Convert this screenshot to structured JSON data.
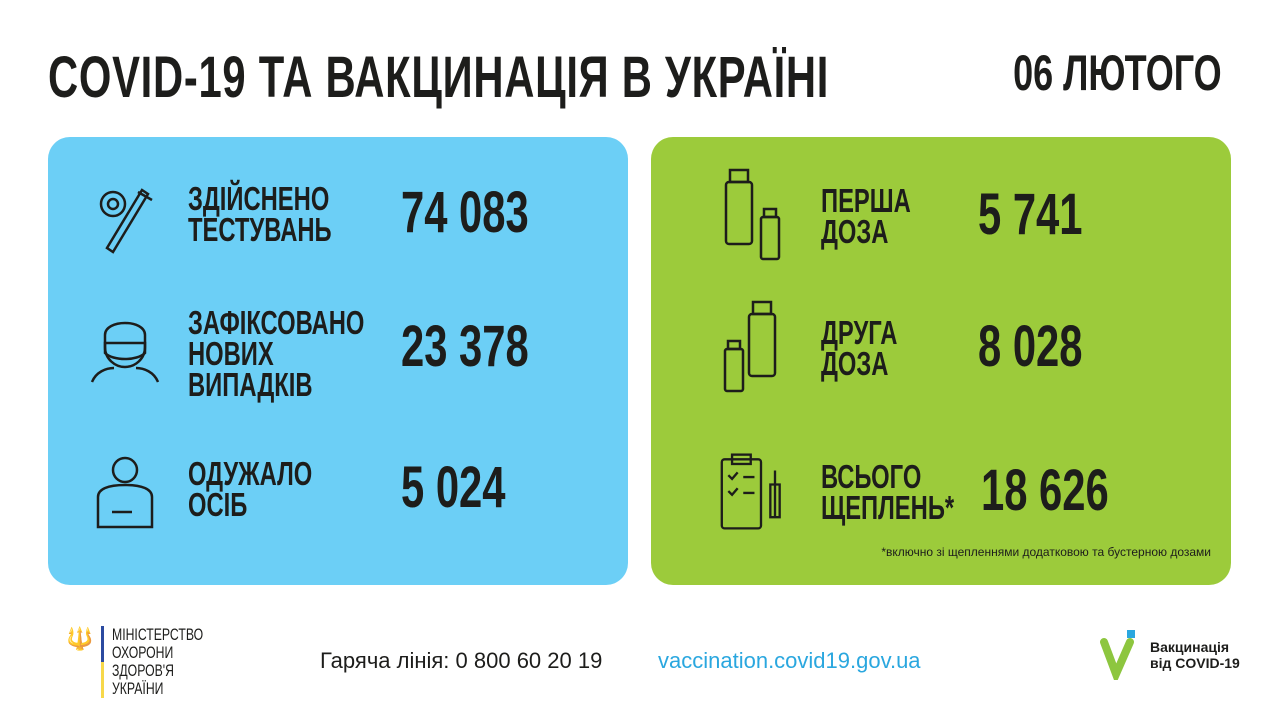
{
  "header": {
    "title": "COVID-19 ТА ВАКЦИНАЦІЯ В УКРАЇНІ",
    "date": "06 ЛЮТОГО"
  },
  "covid": [
    {
      "label1": "ЗДІЙСНЕНО",
      "label2": "ТЕСТУВАНЬ",
      "label3": "",
      "value": "74 083",
      "icon": "test-tube-icon"
    },
    {
      "label1": "ЗАФІКСОВАНО",
      "label2": "НОВИХ",
      "label3": "ВИПАДКІВ",
      "value": "23 378",
      "icon": "masked-person-icon"
    },
    {
      "label1": "ОДУЖАЛО",
      "label2": "ОСІБ",
      "label3": "",
      "value": "5 024",
      "icon": "recovered-person-icon"
    }
  ],
  "vaccination": [
    {
      "label1": "ПЕРША",
      "label2": "ДОЗА",
      "value": "5 741",
      "icon": "vaccine-vials-icon"
    },
    {
      "label1": "ДРУГА",
      "label2": "ДОЗА",
      "value": "8 028",
      "icon": "vaccine-vials-icon"
    },
    {
      "label1": "ВСЬОГО",
      "label2": "ЩЕПЛЕНЬ*",
      "value": "18 626",
      "icon": "clipboard-syringe-icon"
    }
  ],
  "note": "*включно зі щепленнями додатковою та бустерною дозами",
  "footer": {
    "hotline": "Гаряча лінія: 0 800 60 20 19",
    "url": "vaccination.covid19.gov.ua",
    "ministry": [
      "МІНІСТЕРСТВО",
      "ОХОРОНИ",
      "ЗДОРОВ'Я",
      "УКРАЇНИ"
    ],
    "vacc_logo": [
      "Вакцинація",
      "від COVID-19"
    ]
  },
  "colors": {
    "blue_panel": "#6ccff6",
    "green_panel": "#9ccb3b",
    "link": "#2aa7df",
    "logo_green": "#8dc63f",
    "logo_blue": "#2aa7df"
  }
}
